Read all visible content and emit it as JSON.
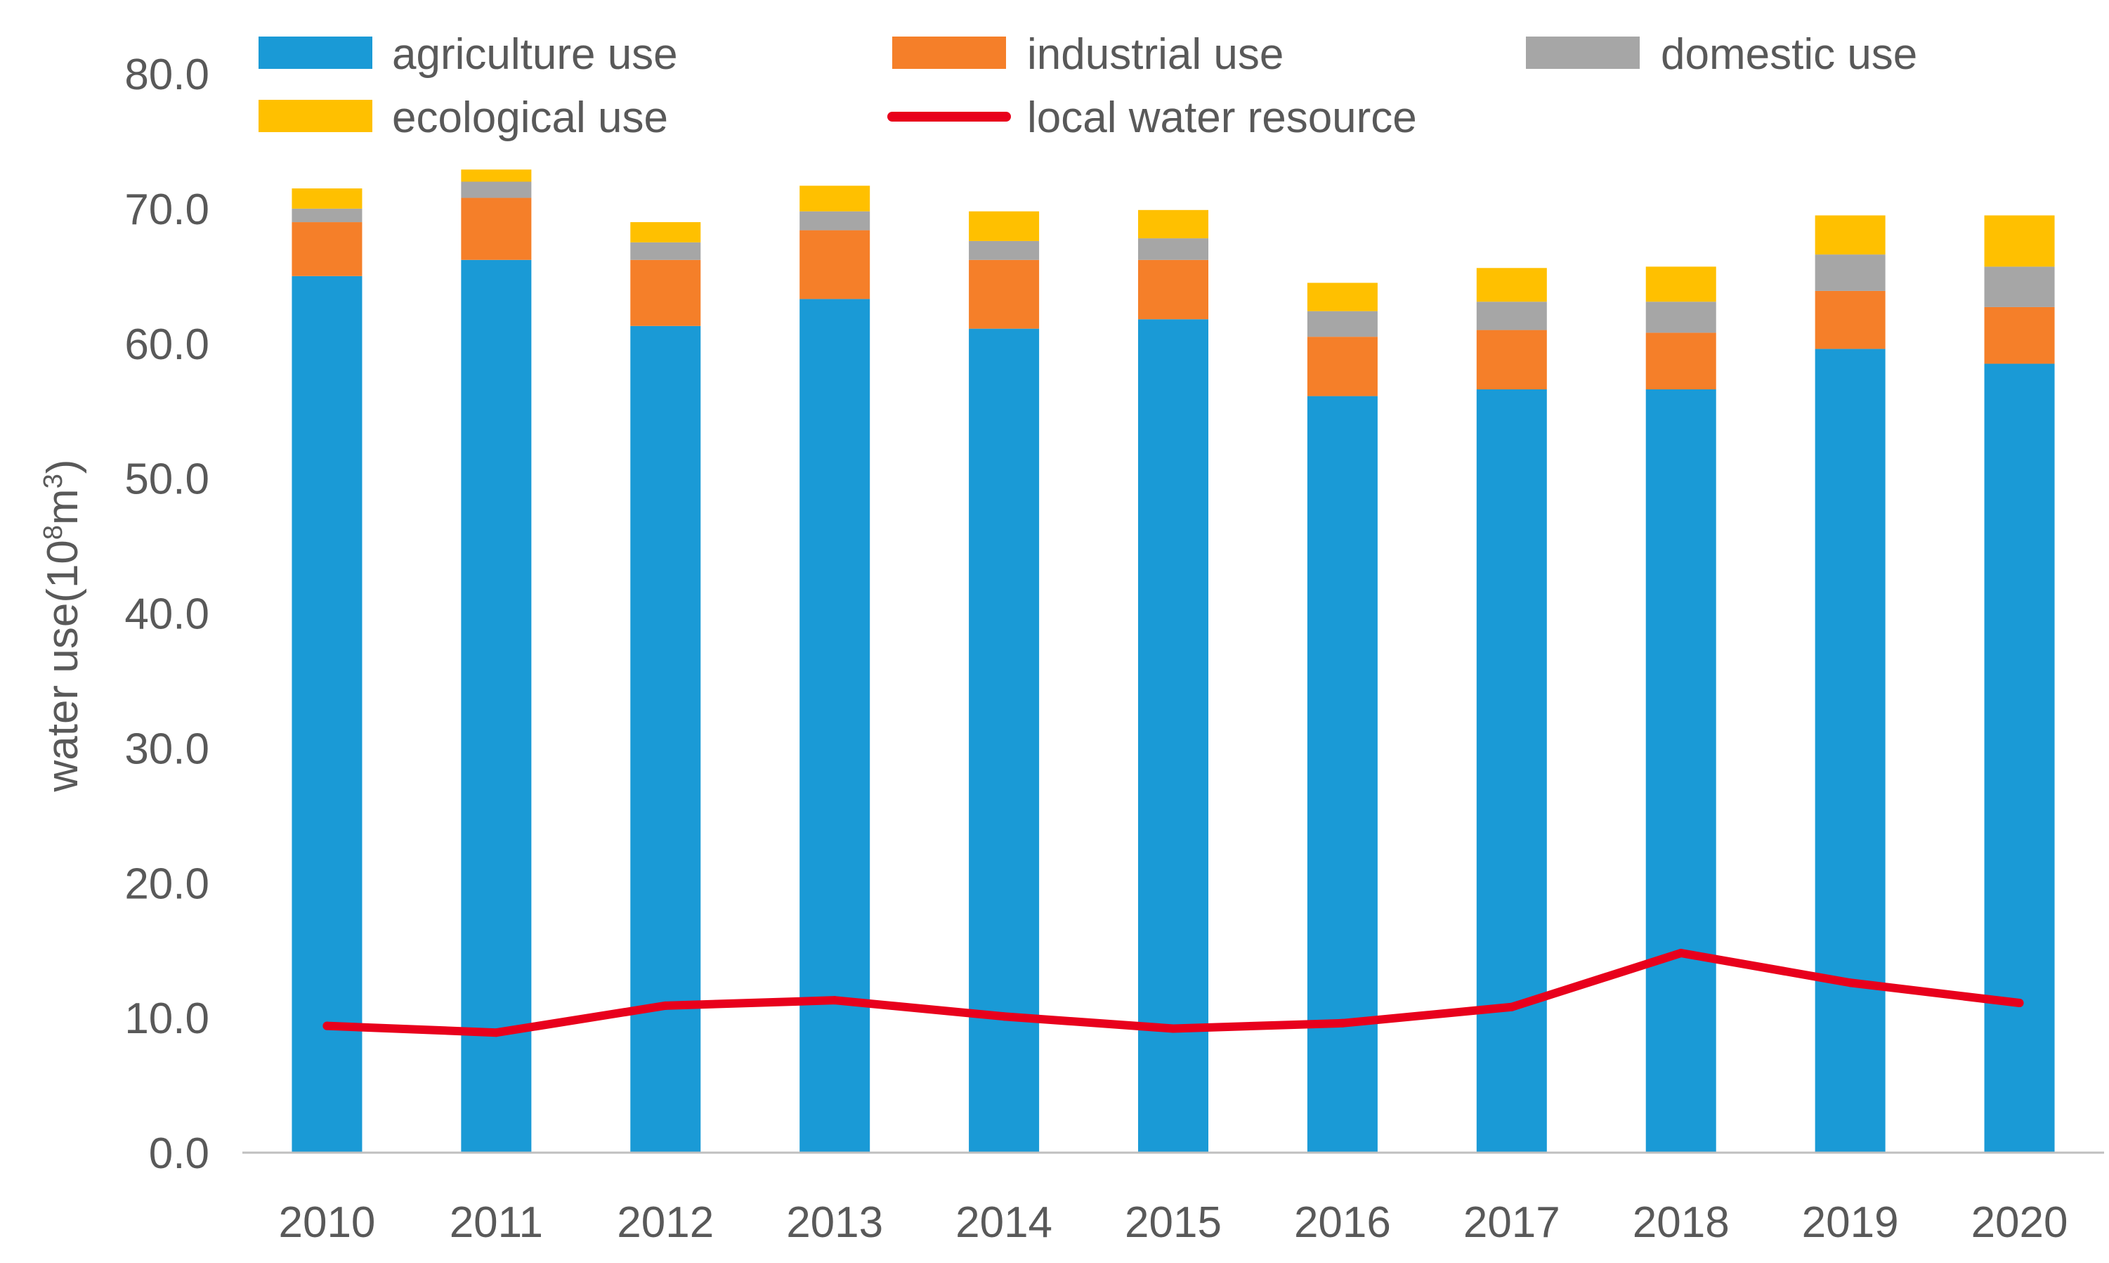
{
  "chart_data": {
    "type": "bar",
    "stacked": true,
    "title": "",
    "xlabel": "",
    "ylabel": {
      "prefix": "water use(10",
      "sup1": "8",
      "middle": "m",
      "sup2": "3",
      "suffix": ")"
    },
    "ylim": [
      0,
      80
    ],
    "yticks": [
      "0.0",
      "10.0",
      "20.0",
      "30.0",
      "40.0",
      "50.0",
      "60.0",
      "70.0",
      "80.0"
    ],
    "ytick_values": [
      0,
      10,
      20,
      30,
      40,
      50,
      60,
      70,
      80
    ],
    "categories": [
      "2010",
      "2011",
      "2012",
      "2013",
      "2014",
      "2015",
      "2016",
      "2017",
      "2018",
      "2019",
      "2020"
    ],
    "series": [
      {
        "name": "agriculture use",
        "kind": "bar",
        "color": "#1A9AD6",
        "values": [
          65.0,
          66.2,
          61.3,
          63.3,
          61.1,
          61.8,
          56.1,
          56.6,
          56.6,
          59.6,
          58.5
        ]
      },
      {
        "name": "industrial use",
        "kind": "bar",
        "color": "#F57F29",
        "values": [
          4.0,
          4.6,
          4.9,
          5.1,
          5.1,
          4.4,
          4.4,
          4.4,
          4.2,
          4.3,
          4.2
        ]
      },
      {
        "name": "domestic use",
        "kind": "bar",
        "color": "#A6A6A6",
        "values": [
          1.0,
          1.2,
          1.3,
          1.4,
          1.4,
          1.6,
          1.9,
          2.1,
          2.3,
          2.7,
          3.0
        ]
      },
      {
        "name": "ecological use",
        "kind": "bar",
        "color": "#FFC000",
        "values": [
          1.5,
          0.9,
          1.5,
          1.9,
          2.2,
          2.1,
          2.1,
          2.5,
          2.6,
          2.9,
          3.8
        ]
      },
      {
        "name": "local water resource",
        "kind": "line",
        "color": "#E8001C",
        "values": [
          9.4,
          8.9,
          10.9,
          11.3,
          10.1,
          9.2,
          9.6,
          10.8,
          14.8,
          12.6,
          11.1
        ]
      }
    ],
    "legend": {
      "position": "top",
      "entries": [
        "agriculture use",
        "industrial use",
        "domestic use",
        "ecological use",
        "local water resource"
      ]
    },
    "grid": false
  }
}
